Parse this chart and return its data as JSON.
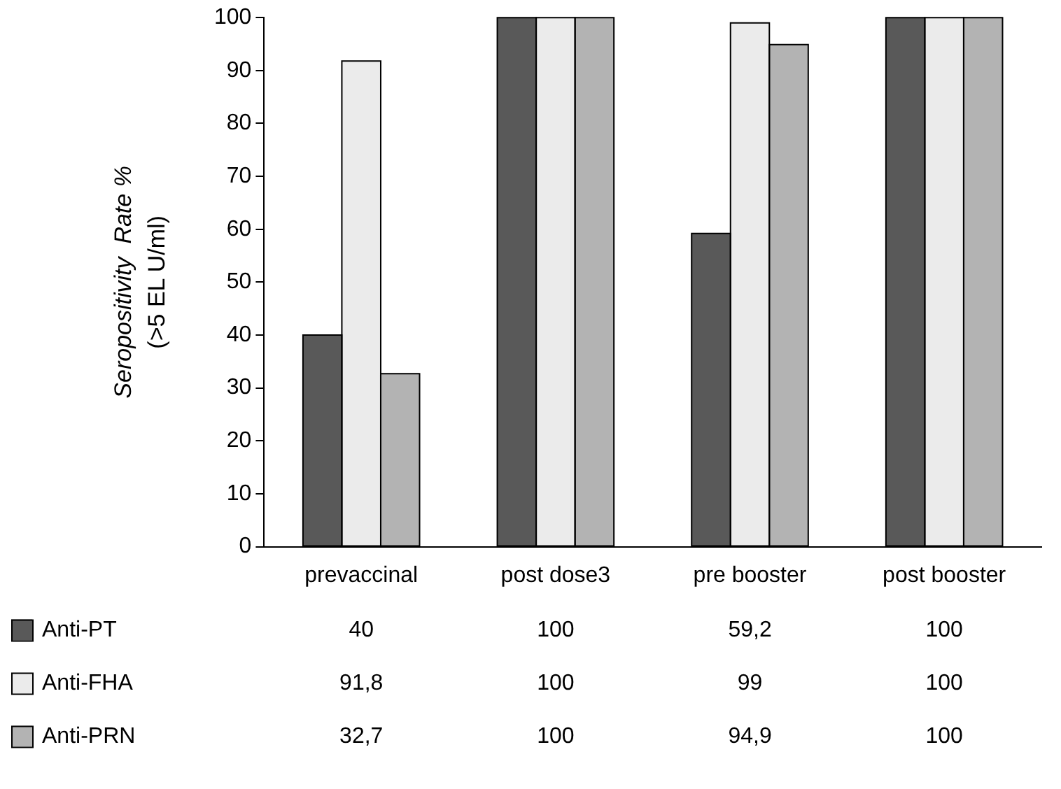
{
  "chart_data": {
    "type": "bar",
    "ylabel": "Seropositivity  Rate %\n(>5 EL U/ml)",
    "categories": [
      "prevaccinal",
      "post dose3",
      "pre booster",
      "post booster"
    ],
    "series": [
      {
        "name": "Anti-PT",
        "color": "#595959",
        "values": [
          40,
          100,
          59.2,
          100
        ],
        "value_labels": [
          "40",
          "100",
          "59,2",
          "100"
        ]
      },
      {
        "name": "Anti-FHA",
        "color": "#ebebeb",
        "values": [
          91.8,
          100,
          99,
          100
        ],
        "value_labels": [
          "91,8",
          "100",
          "99",
          "100"
        ]
      },
      {
        "name": "Anti-PRN",
        "color": "#b3b3b3",
        "values": [
          32.7,
          100,
          94.9,
          100
        ],
        "value_labels": [
          "32,7",
          "100",
          "94,9",
          "100"
        ]
      }
    ],
    "ylim": [
      0,
      100
    ],
    "yticks": [
      0,
      10,
      20,
      30,
      40,
      50,
      60,
      70,
      80,
      90,
      100
    ],
    "grid": false,
    "legend": "bottom"
  }
}
